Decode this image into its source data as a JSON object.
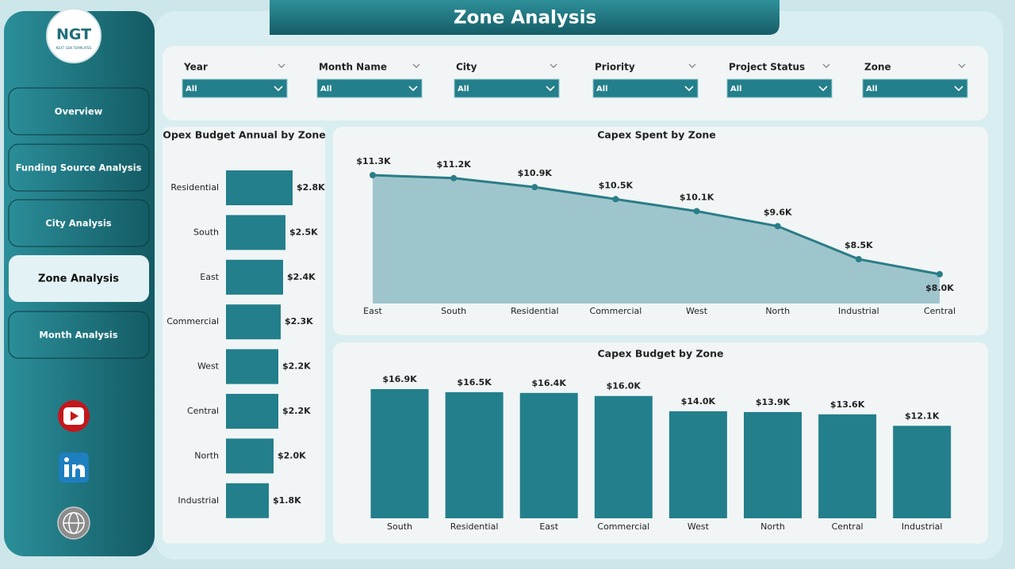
{
  "header": {
    "title": "Zone Analysis",
    "logo": "NGT",
    "logo_subtitle": "NEXT GEN TEMPLATES"
  },
  "nav": [
    "Overview",
    "Funding Source Analysis",
    "City Analysis",
    "Zone Analysis",
    "Month Analysis"
  ],
  "filters": [
    {
      "label": "Year",
      "value": "All"
    },
    {
      "label": "Month Name",
      "value": "All"
    },
    {
      "label": "City",
      "value": "All"
    },
    {
      "label": "Priority",
      "value": "All"
    },
    {
      "label": "Project Status",
      "value": "All"
    },
    {
      "label": "Zone",
      "value": "All"
    }
  ],
  "chart_data": [
    {
      "type": "bar",
      "horizontal": true,
      "title": "Opex Budget Annual by Zone",
      "color": "#237f8b",
      "categories": [
        "Residential",
        "South",
        "East",
        "Commercial",
        "West",
        "Central",
        "North",
        "Industrial"
      ],
      "values": [
        2800,
        2500,
        2400,
        2300,
        2200,
        2200,
        2000,
        1800
      ],
      "value_labels": [
        "$2.8K",
        "$2.5K",
        "$2.4K",
        "$2.3K",
        "$2.2K",
        "$2.2K",
        "$2.0K",
        "$1.8K"
      ]
    },
    {
      "type": "area",
      "title": "Capex Spent by Zone",
      "color": "#2a7d87",
      "fill": "#9fc5cc",
      "categories": [
        "East",
        "South",
        "Residential",
        "Commercial",
        "West",
        "North",
        "Industrial",
        "Central"
      ],
      "values": [
        11300,
        11200,
        10900,
        10500,
        10100,
        9600,
        8500,
        8000
      ],
      "value_labels": [
        "$11.3K",
        "$11.2K",
        "$10.9K",
        "$10.5K",
        "$10.1K",
        "$9.6K",
        "$8.5K",
        "$8.0K"
      ]
    },
    {
      "type": "bar",
      "horizontal": false,
      "title": "Capex Budget by Zone",
      "color": "#237f8b",
      "categories": [
        "South",
        "Residential",
        "East",
        "Commercial",
        "West",
        "North",
        "Central",
        "Industrial"
      ],
      "values": [
        16900,
        16500,
        16400,
        16000,
        14000,
        13900,
        13600,
        12100
      ],
      "value_labels": [
        "$16.9K",
        "$16.5K",
        "$16.4K",
        "$16.0K",
        "$14.0K",
        "$13.9K",
        "$13.6K",
        "$12.1K"
      ]
    }
  ]
}
